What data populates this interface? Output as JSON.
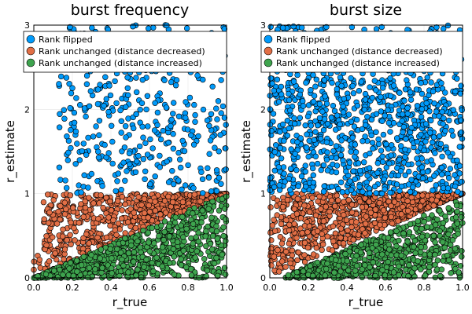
{
  "chart_data": [
    {
      "type": "scatter",
      "title": "burst frequency",
      "xlabel": "r_true",
      "ylabel": "r_estimate",
      "xlim": [
        0,
        1
      ],
      "ylim": [
        0,
        3
      ],
      "xticks": [
        "0.0",
        "0.2",
        "0.4",
        "0.6",
        "0.8",
        "1.0"
      ],
      "yticks": [
        "0",
        "1",
        "2",
        "3"
      ],
      "grid": true,
      "legend_position": "top-right",
      "series": [
        {
          "name": "Rank flipped",
          "color": "#009AFA",
          "region": "r_estimate > 1",
          "density": "sparse",
          "approx_points": 420,
          "x_range": [
            0.13,
            1.0
          ],
          "y_range": [
            1.0,
            3.0
          ]
        },
        {
          "name": "Rank unchanged (distance decreased)",
          "color": "#E26F46",
          "region": "r_true < r_estimate < 1",
          "density": "dense",
          "approx_points": 700,
          "x_range": [
            0.0,
            1.0
          ],
          "y_range": [
            0.0,
            1.0
          ]
        },
        {
          "name": "Rank unchanged (distance increased)",
          "color": "#3EA44E",
          "region": "r_estimate < r_true",
          "density": "dense",
          "approx_points": 900,
          "x_range": [
            0.0,
            1.0
          ],
          "y_range": [
            0.0,
            1.0
          ]
        }
      ]
    },
    {
      "type": "scatter",
      "title": "burst size",
      "xlabel": "r_true",
      "ylabel": "r_estimate",
      "xlim": [
        0,
        1
      ],
      "ylim": [
        0,
        3
      ],
      "xticks": [
        "0.0",
        "0.2",
        "0.4",
        "0.6",
        "0.8",
        "1.0"
      ],
      "yticks": [
        "0",
        "1",
        "2",
        "3"
      ],
      "grid": true,
      "legend_position": "top-right",
      "series": [
        {
          "name": "Rank flipped",
          "color": "#009AFA",
          "region": "r_estimate > 1",
          "density": "dense",
          "approx_points": 1100,
          "x_range": [
            0.0,
            1.0
          ],
          "y_range": [
            1.0,
            3.0
          ]
        },
        {
          "name": "Rank unchanged (distance decreased)",
          "color": "#E26F46",
          "region": "r_true < r_estimate < 1",
          "density": "dense",
          "approx_points": 900,
          "x_range": [
            0.0,
            1.0
          ],
          "y_range": [
            0.0,
            1.0
          ]
        },
        {
          "name": "Rank unchanged (distance increased)",
          "color": "#3EA44E",
          "region": "r_estimate < r_true",
          "density": "dense",
          "approx_points": 700,
          "x_range": [
            0.08,
            1.0
          ],
          "y_range": [
            0.0,
            1.0
          ]
        }
      ]
    }
  ]
}
